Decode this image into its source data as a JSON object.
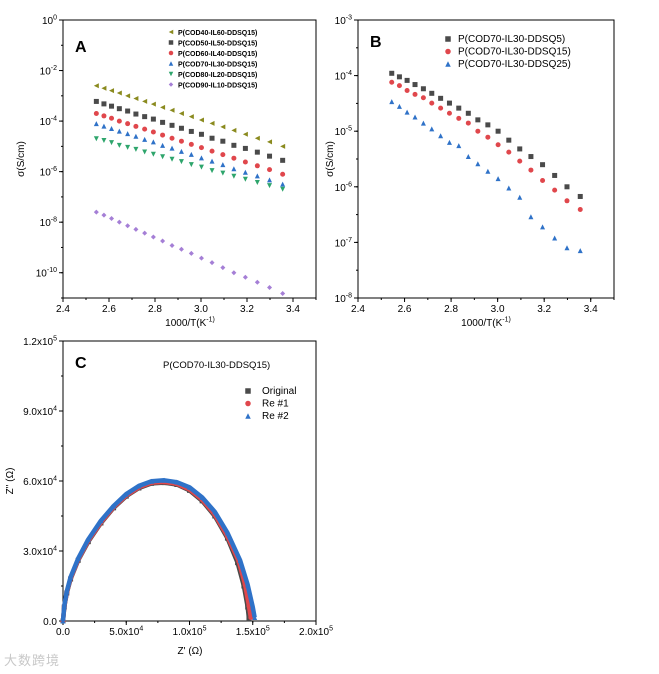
{
  "chart_data": [
    {
      "type": "scatter",
      "panel_label": "A",
      "xlabel": "1000/T(K^-1)",
      "ylabel": "σ(S/cm)",
      "xlim": [
        2.4,
        3.5
      ],
      "ylim": [
        1e-11,
        1
      ],
      "yscale": "log",
      "xticks": [
        "2.4",
        "2.6",
        "2.8",
        "3.0",
        "3.2",
        "3.4"
      ],
      "yticks": [
        "10^0",
        "10^-2",
        "10^-4",
        "10^-6",
        "10^-8",
        "10^-10"
      ],
      "legend_position": "top-right",
      "x": [
        2.545,
        2.578,
        2.611,
        2.645,
        2.681,
        2.717,
        2.755,
        2.793,
        2.833,
        2.874,
        2.915,
        2.958,
        3.002,
        3.048,
        3.095,
        3.143,
        3.193,
        3.245,
        3.298,
        3.355
      ],
      "series": [
        {
          "name": "P(COD40-IL60-DDSQ15)",
          "marker": "triangle-left",
          "color": "#8a8a1e",
          "values": [
            0.0025,
            0.002,
            0.0016,
            0.0013,
            0.001,
            0.00078,
            0.0006,
            0.00047,
            0.00035,
            0.00027,
            0.0002,
            0.00015,
            0.00011,
            8.1e-05,
            5.9e-05,
            4.3e-05,
            3e-05,
            2.1e-05,
            1.5e-05,
            1e-05
          ]
        },
        {
          "name": "P(COD50-IL50-DDSQ15)",
          "marker": "square",
          "color": "#4a4a4a",
          "values": [
            0.0006,
            0.00048,
            0.00039,
            0.00031,
            0.00025,
            0.00019,
            0.00015,
            0.00012,
            8.9e-05,
            6.8e-05,
            5.2e-05,
            3.9e-05,
            3e-05,
            2.1e-05,
            1.6e-05,
            1.1e-05,
            8.3e-06,
            5.9e-06,
            4.1e-06,
            2.8e-06
          ]
        },
        {
          "name": "P(COD60-IL40-DDSQ15)",
          "marker": "circle",
          "color": "#e0474c",
          "values": [
            0.0002,
            0.00016,
            0.00013,
            0.0001,
            7.9e-05,
            6.2e-05,
            4.8e-05,
            3.7e-05,
            2.8e-05,
            2.1e-05,
            1.6e-05,
            1.2e-05,
            8.9e-06,
            6.5e-06,
            4.7e-06,
            3.4e-06,
            2.4e-06,
            1.7e-06,
            1.2e-06,
            7.9e-07
          ]
        },
        {
          "name": "P(COD70-IL30-DDSQ15)",
          "marker": "triangle-up",
          "color": "#2f72c8",
          "values": [
            7.9e-05,
            6.3e-05,
            5.1e-05,
            4e-05,
            3.2e-05,
            2.5e-05,
            1.9e-05,
            1.5e-05,
            1.1e-05,
            8.5e-06,
            6.3e-06,
            4.8e-06,
            3.5e-06,
            2.6e-06,
            1.9e-06,
            1.3e-06,
            9.5e-07,
            6.8e-07,
            4.7e-07,
            3.2e-07
          ]
        },
        {
          "name": "P(COD80-IL20-DDSQ15)",
          "marker": "triangle-down",
          "color": "#2ea56c",
          "values": [
            2e-05,
            1.7e-05,
            1.4e-05,
            1.1e-05,
            9.1e-06,
            7.6e-06,
            6e-06,
            4.9e-06,
            3.9e-06,
            3.1e-06,
            2.5e-06,
            1.9e-06,
            1.5e-06,
            1.1e-06,
            8.7e-07,
            6.6e-07,
            5e-07,
            3.7e-07,
            2.8e-07,
            2e-07
          ]
        },
        {
          "name": "P(COD90-IL10-DDSQ15)",
          "marker": "diamond",
          "color": "#a57fd6",
          "values": [
            2.5e-08,
            1.9e-08,
            1.4e-08,
            1e-08,
            7.2e-09,
            5.2e-09,
            3.7e-09,
            2.6e-09,
            1.8e-09,
            1.2e-09,
            8.5e-10,
            5.8e-10,
            3.8e-10,
            2.5e-10,
            1.6e-10,
            1e-10,
            6.6e-11,
            4.2e-11,
            2.6e-11,
            1.5e-11
          ]
        }
      ]
    },
    {
      "type": "scatter",
      "panel_label": "B",
      "xlabel": "1000/T(K^-1)",
      "ylabel": "σ(S/cm)",
      "xlim": [
        2.4,
        3.5
      ],
      "ylim": [
        1e-08,
        0.001
      ],
      "yscale": "log",
      "xticks": [
        "2.4",
        "2.6",
        "2.8",
        "3.0",
        "3.2",
        "3.4"
      ],
      "yticks": [
        "10^-3",
        "10^-4",
        "10^-5",
        "10^-6",
        "10^-7",
        "10^-8"
      ],
      "legend_position": "top-right",
      "x": [
        2.545,
        2.578,
        2.611,
        2.645,
        2.681,
        2.717,
        2.755,
        2.793,
        2.833,
        2.874,
        2.915,
        2.958,
        3.002,
        3.048,
        3.095,
        3.143,
        3.193,
        3.245,
        3.298,
        3.355
      ],
      "series": [
        {
          "name": "P(COD70-IL30-DDSQ5)",
          "marker": "square",
          "color": "#4a4a4a",
          "values": [
            0.00011,
            9.5e-05,
            8.2e-05,
            6.9e-05,
            5.8e-05,
            4.8e-05,
            3.9e-05,
            3.2e-05,
            2.6e-05,
            2.1e-05,
            1.6e-05,
            1.3e-05,
            1e-05,
            6.9e-06,
            4.8e-06,
            3.5e-06,
            2.5e-06,
            1.6e-06,
            1e-06,
            6.7e-07
          ]
        },
        {
          "name": "P(COD70-IL30-DDSQ15)",
          "marker": "circle",
          "color": "#e0474c",
          "values": [
            7.6e-05,
            6.6e-05,
            5.4e-05,
            4.6e-05,
            4e-05,
            3.2e-05,
            2.6e-05,
            2.1e-05,
            1.7e-05,
            1.4e-05,
            1e-05,
            7.8e-06,
            5.7e-06,
            4.2e-06,
            2.9e-06,
            2e-06,
            1.3e-06,
            8.7e-07,
            5.6e-07,
            3.9e-07
          ]
        },
        {
          "name": "P(COD70-IL30-DDSQ25)",
          "marker": "triangle-up",
          "color": "#2f72c8",
          "values": [
            3.4e-05,
            2.8e-05,
            2.2e-05,
            1.8e-05,
            1.4e-05,
            1.1e-05,
            8.3e-06,
            6.3e-06,
            5.5e-06,
            3.5e-06,
            2.6e-06,
            1.9e-06,
            1.4e-06,
            9.5e-07,
            6.5e-07,
            2.9e-07,
            1.9e-07,
            1.2e-07,
            8e-08,
            7.1e-08
          ]
        }
      ]
    },
    {
      "type": "scatter",
      "panel_label": "C",
      "title": "P(COD70-IL30-DDSQ15)",
      "xlabel": "Z' (Ω)",
      "ylabel": "Z'' (Ω)",
      "xlim": [
        0,
        200000
      ],
      "ylim": [
        0,
        120000
      ],
      "yscale": "linear",
      "xticks": [
        "0.0",
        "5.0x10^4",
        "1.0x10^5",
        "1.5x10^5",
        "2.0x10^5"
      ],
      "yticks": [
        "0.0",
        "3.0x10^4",
        "6.0x10^4",
        "9.0x10^4",
        "1.2x10^5"
      ],
      "legend_position": "top-right",
      "series": [
        {
          "name": "Original",
          "marker": "square",
          "color": "#4a4a4a",
          "x": [
            0,
            1000,
            3000,
            6000,
            12000,
            20000,
            30000,
            40000,
            50000,
            60000,
            70000,
            80000,
            90000,
            100000,
            110000,
            120000,
            130000,
            138000,
            143000,
            146000,
            147000
          ],
          "values": [
            0,
            6000,
            12000,
            18000,
            26000,
            34000,
            42000,
            48500,
            53500,
            57000,
            59000,
            59300,
            58500,
            56000,
            51500,
            45000,
            35500,
            25000,
            15000,
            6000,
            1000
          ]
        },
        {
          "name": "Re #1",
          "marker": "circle",
          "color": "#e0474c",
          "x": [
            0,
            1000,
            3000,
            6000,
            12000,
            20000,
            30000,
            40000,
            50000,
            60000,
            70000,
            80000,
            90000,
            100000,
            110000,
            120000,
            130000,
            139000,
            144000,
            147000,
            148500
          ],
          "values": [
            0,
            6200,
            12300,
            18300,
            26300,
            34400,
            42300,
            48800,
            53800,
            57300,
            59300,
            59600,
            58800,
            56400,
            52000,
            45600,
            36300,
            25500,
            15500,
            6500,
            1500
          ]
        },
        {
          "name": "Re #2",
          "marker": "triangle-up",
          "color": "#2f72c8",
          "x": [
            0,
            1000,
            3000,
            6000,
            12000,
            20000,
            30000,
            40000,
            50000,
            60000,
            70000,
            80000,
            90000,
            100000,
            110000,
            120000,
            130000,
            140000,
            146000,
            150000,
            151500
          ],
          "values": [
            0,
            6500,
            12700,
            18800,
            26800,
            35000,
            43000,
            49300,
            54400,
            57900,
            59900,
            60300,
            59500,
            57300,
            53000,
            46800,
            37800,
            26000,
            15500,
            6000,
            1500
          ]
        }
      ]
    }
  ],
  "watermark": "大数跨境"
}
